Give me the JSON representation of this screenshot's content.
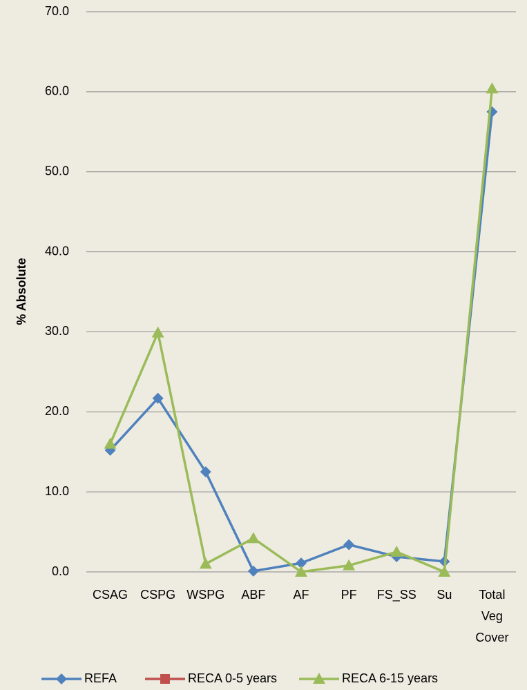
{
  "chart_data": {
    "type": "line",
    "y_label": "% Absolute",
    "categories": [
      "CSAG",
      "CSPG",
      "WSPG",
      "ABF",
      "AF",
      "PF",
      "FS_SS",
      "Su",
      "Total Veg Cover"
    ],
    "series": [
      {
        "name": "REFA",
        "color": "#4f81bd",
        "marker": "diamond",
        "values": [
          15.2,
          21.7,
          12.5,
          0.1,
          1.1,
          3.4,
          1.9,
          1.3,
          57.5
        ]
      },
      {
        "name": "RECA 0-5 years",
        "color": "#c0504d",
        "marker": "square",
        "values": [
          null,
          null,
          null,
          null,
          null,
          null,
          null,
          null,
          null
        ]
      },
      {
        "name": "RECA 6-15 years",
        "color": "#9bbb59",
        "marker": "triangle",
        "values": [
          16.0,
          29.9,
          1.0,
          4.2,
          0.0,
          0.8,
          2.5,
          0.0,
          60.4
        ]
      }
    ],
    "ylim": [
      0,
      70
    ],
    "yticks": [
      {
        "value": 0,
        "label": "0.0"
      },
      {
        "value": 10,
        "label": "10.0"
      },
      {
        "value": 20,
        "label": "20.0"
      },
      {
        "value": 30,
        "label": "30.0"
      },
      {
        "value": 40,
        "label": "40.0"
      },
      {
        "value": 50,
        "label": "50.0"
      },
      {
        "value": 60,
        "label": "60.0"
      },
      {
        "value": 70,
        "label": "70.0"
      }
    ],
    "grid": true,
    "legend": "bottom"
  }
}
